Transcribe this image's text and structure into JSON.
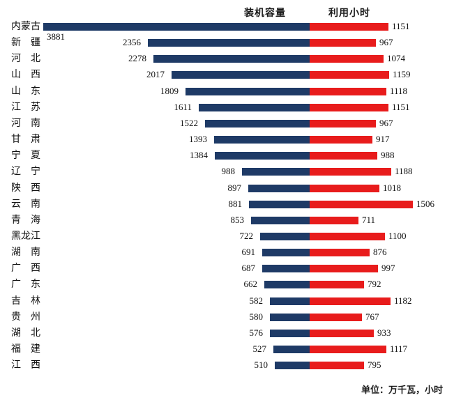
{
  "header": {
    "capacity_label": "装机容量",
    "hours_label": "利用小时"
  },
  "footer": {
    "unit_note": "单位：万千瓦，小时"
  },
  "colors": {
    "capacity_bar": "#1E3A66",
    "hours_bar": "#E81C1C"
  },
  "chart_data": {
    "type": "bar",
    "variant": "diverging-horizontal",
    "title": "",
    "legend_position": "top",
    "grid": false,
    "unit_note": "单位：万千瓦，小时",
    "categories": [
      "内蒙古",
      "新疆",
      "河北",
      "山西",
      "山东",
      "江苏",
      "河南",
      "甘肃",
      "宁夏",
      "辽宁",
      "陕西",
      "云南",
      "青海",
      "黑龙江",
      "湖南",
      "广西",
      "广东",
      "吉林",
      "贵州",
      "湖北",
      "福建",
      "江西"
    ],
    "series": [
      {
        "name": "装机容量",
        "unit": "万千瓦",
        "direction": "left",
        "color": "#1E3A66",
        "values": [
          3881,
          2356,
          2278,
          2017,
          1809,
          1611,
          1522,
          1393,
          1384,
          988,
          897,
          881,
          853,
          722,
          691,
          687,
          662,
          582,
          580,
          576,
          527,
          510
        ]
      },
      {
        "name": "利用小时",
        "unit": "小时",
        "direction": "right",
        "color": "#E81C1C",
        "values": [
          1151,
          967,
          1074,
          1159,
          1118,
          1151,
          967,
          917,
          988,
          1188,
          1018,
          1506,
          711,
          1100,
          876,
          997,
          792,
          1182,
          767,
          933,
          1117,
          795
        ]
      }
    ]
  }
}
